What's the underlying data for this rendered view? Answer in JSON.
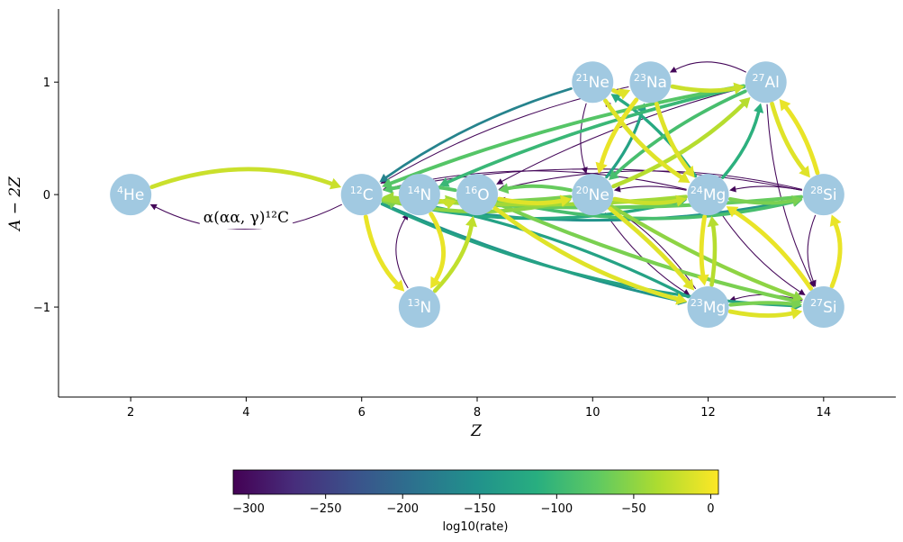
{
  "chart_data": {
    "type": "network",
    "xlabel": "Z",
    "ylabel": "A − 2Z",
    "xlim": [
      0.75,
      15.25
    ],
    "ylim": [
      -1.8,
      1.65
    ],
    "x_ticks": [
      {
        "value": 2,
        "label": "2"
      },
      {
        "value": 4,
        "label": "4"
      },
      {
        "value": 6,
        "label": "6"
      },
      {
        "value": 8,
        "label": "8"
      },
      {
        "value": 10,
        "label": "10"
      },
      {
        "value": 12,
        "label": "12"
      },
      {
        "value": 14,
        "label": "14"
      }
    ],
    "y_ticks": [
      {
        "value": 1,
        "label": "1"
      },
      {
        "value": 0,
        "label": "0"
      },
      {
        "value": -1,
        "label": "−1"
      }
    ],
    "annotation": {
      "text": "α(αα, γ)¹²C",
      "x": 4.0,
      "y": -0.2
    },
    "nodes": [
      {
        "id": "he4",
        "mass": "4",
        "element": "He",
        "Z": 2,
        "N_minus_Z": 0
      },
      {
        "id": "c12",
        "mass": "12",
        "element": "C",
        "Z": 6,
        "N_minus_Z": 0
      },
      {
        "id": "n14",
        "mass": "14",
        "element": "N",
        "Z": 7,
        "N_minus_Z": 0
      },
      {
        "id": "o16",
        "mass": "16",
        "element": "O",
        "Z": 8,
        "N_minus_Z": 0
      },
      {
        "id": "ne20",
        "mass": "20",
        "element": "Ne",
        "Z": 10,
        "N_minus_Z": 0
      },
      {
        "id": "mg24",
        "mass": "24",
        "element": "Mg",
        "Z": 12,
        "N_minus_Z": 0
      },
      {
        "id": "si28",
        "mass": "28",
        "element": "Si",
        "Z": 14,
        "N_minus_Z": 0
      },
      {
        "id": "ne21",
        "mass": "21",
        "element": "Ne",
        "Z": 10,
        "N_minus_Z": 1
      },
      {
        "id": "na23",
        "mass": "23",
        "element": "Na",
        "Z": 11,
        "N_minus_Z": 1
      },
      {
        "id": "al27",
        "mass": "27",
        "element": "Al",
        "Z": 13,
        "N_minus_Z": 1
      },
      {
        "id": "n13",
        "mass": "13",
        "element": "N",
        "Z": 7,
        "N_minus_Z": -1
      },
      {
        "id": "mg23",
        "mass": "23",
        "element": "Mg",
        "Z": 12,
        "N_minus_Z": -1
      },
      {
        "id": "si27",
        "mass": "27",
        "element": "Si",
        "Z": 14,
        "N_minus_Z": -1
      }
    ],
    "edges": [
      {
        "from": "he4",
        "to": "c12",
        "log10_rate": -20,
        "curve": -0.18
      },
      {
        "from": "c12",
        "to": "he4",
        "log10_rate": -305,
        "curve": -0.25
      },
      {
        "from": "c12",
        "to": "n13",
        "log10_rate": -5,
        "curve": 0.15
      },
      {
        "from": "n13",
        "to": "o16",
        "log10_rate": -25,
        "curve": 0.15
      },
      {
        "from": "n14",
        "to": "n13",
        "log10_rate": -5,
        "curve": -0.3
      },
      {
        "from": "n13",
        "to": "n14",
        "log10_rate": -305,
        "curve": -0.3
      },
      {
        "from": "c12",
        "to": "o16",
        "log10_rate": -40,
        "curve": 0.1
      },
      {
        "from": "o16",
        "to": "c12",
        "log10_rate": -80,
        "curve": 0.1
      },
      {
        "from": "c12",
        "to": "n14",
        "log10_rate": -60,
        "curve": 0.15
      },
      {
        "from": "n14",
        "to": "o16",
        "log10_rate": -20,
        "curve": 0.15
      },
      {
        "from": "o16",
        "to": "ne20",
        "log10_rate": -10,
        "curve": 0.1
      },
      {
        "from": "ne20",
        "to": "o16",
        "log10_rate": -70,
        "curve": 0.1
      },
      {
        "from": "c12",
        "to": "ne20",
        "log10_rate": -50,
        "curve": 0.12
      },
      {
        "from": "c12",
        "to": "mg24",
        "log10_rate": -120,
        "curve": 0.12
      },
      {
        "from": "mg24",
        "to": "c12",
        "log10_rate": -305,
        "curve": 0.12
      },
      {
        "from": "c12",
        "to": "si28",
        "log10_rate": -150,
        "curve": 0.1
      },
      {
        "from": "si28",
        "to": "c12",
        "log10_rate": -305,
        "curve": 0.1
      },
      {
        "from": "si28",
        "to": "o16",
        "log10_rate": -305,
        "curve": 0.12
      },
      {
        "from": "o16",
        "to": "si28",
        "log10_rate": -90,
        "curve": 0.12
      },
      {
        "from": "ne20",
        "to": "mg24",
        "log10_rate": -20,
        "curve": 0.1
      },
      {
        "from": "mg24",
        "to": "ne20",
        "log10_rate": -305,
        "curve": 0.1
      },
      {
        "from": "mg24",
        "to": "si28",
        "log10_rate": -60,
        "curve": 0.1
      },
      {
        "from": "si28",
        "to": "mg24",
        "log10_rate": -305,
        "curve": 0.1
      },
      {
        "from": "ne21",
        "to": "c12",
        "log10_rate": -170,
        "curve": 0.08
      },
      {
        "from": "na23",
        "to": "c12",
        "log10_rate": -305,
        "curve": 0.08
      },
      {
        "from": "al27",
        "to": "c12",
        "log10_rate": -80,
        "curve": 0.05
      },
      {
        "from": "al27",
        "to": "n14",
        "log10_rate": -100,
        "curve": 0.05
      },
      {
        "from": "al27",
        "to": "o16",
        "log10_rate": -305,
        "curve": 0.06
      },
      {
        "from": "c12",
        "to": "mg23",
        "log10_rate": -150,
        "curve": 0.05
      },
      {
        "from": "c12",
        "to": "si27",
        "log10_rate": -130,
        "curve": 0.1
      },
      {
        "from": "o16",
        "to": "mg23",
        "log10_rate": -10,
        "curve": 0.1
      },
      {
        "from": "ne20",
        "to": "si27",
        "log10_rate": -50,
        "curve": 0.05
      },
      {
        "from": "o16",
        "to": "si27",
        "log10_rate": -60,
        "curve": 0.05
      },
      {
        "from": "ne20",
        "to": "mg23",
        "log10_rate": -305,
        "curve": 0.1
      },
      {
        "from": "ne21",
        "to": "mg24",
        "log10_rate": -10,
        "curve": 0.1
      },
      {
        "from": "mg24",
        "to": "ne21",
        "log10_rate": -120,
        "curve": 0.1
      },
      {
        "from": "ne21",
        "to": "ne20",
        "log10_rate": -305,
        "curve": 0.15
      },
      {
        "from": "ne21",
        "to": "na23",
        "log10_rate": -10,
        "curve": 0.2
      },
      {
        "from": "na23",
        "to": "ne20",
        "log10_rate": -5,
        "curve": 0.1
      },
      {
        "from": "na23",
        "to": "mg24",
        "log10_rate": -10,
        "curve": 0.1
      },
      {
        "from": "na23",
        "to": "al27",
        "log10_rate": -20,
        "curve": 0.1
      },
      {
        "from": "al27",
        "to": "na23",
        "log10_rate": -305,
        "curve": 0.25
      },
      {
        "from": "ne20",
        "to": "na23",
        "log10_rate": -130,
        "curve": 0.1
      },
      {
        "from": "al27",
        "to": "ne20",
        "log10_rate": -90,
        "curve": 0.08
      },
      {
        "from": "mg24",
        "to": "al27",
        "log10_rate": -110,
        "curve": 0.12
      },
      {
        "from": "ne20",
        "to": "al27",
        "log10_rate": -30,
        "curve": 0.1
      },
      {
        "from": "al27",
        "to": "si28",
        "log10_rate": -10,
        "curve": 0.1
      },
      {
        "from": "si28",
        "to": "al27",
        "log10_rate": -5,
        "curve": 0.1
      },
      {
        "from": "al27",
        "to": "si27",
        "log10_rate": -305,
        "curve": 0.1
      },
      {
        "from": "si28",
        "to": "si27",
        "log10_rate": -305,
        "curve": 0.2
      },
      {
        "from": "si27",
        "to": "si28",
        "log10_rate": -5,
        "curve": 0.2
      },
      {
        "from": "mg24",
        "to": "mg23",
        "log10_rate": -5,
        "curve": 0.08
      },
      {
        "from": "mg23",
        "to": "mg24",
        "log10_rate": -30,
        "curve": 0.08
      },
      {
        "from": "mg23",
        "to": "si27",
        "log10_rate": -10,
        "curve": 0.1
      },
      {
        "from": "si27",
        "to": "mg23",
        "log10_rate": -305,
        "curve": 0.15
      },
      {
        "from": "mg23",
        "to": "si27",
        "log10_rate": -60,
        "curve": -0.05
      },
      {
        "from": "si27",
        "to": "mg24",
        "log10_rate": -5,
        "curve": 0.1
      },
      {
        "from": "mg24",
        "to": "si27",
        "log10_rate": -305,
        "curve": 0.1
      },
      {
        "from": "ne20",
        "to": "mg23",
        "log10_rate": -10,
        "curve": -0.05
      },
      {
        "from": "mg23",
        "to": "ne20",
        "log10_rate": -305,
        "curve": 0.1
      },
      {
        "from": "mg24",
        "to": "ne21",
        "log10_rate": -305,
        "curve": -0.1
      },
      {
        "from": "mg24",
        "to": "c12",
        "log10_rate": -40,
        "curve": -0.05
      },
      {
        "from": "si28",
        "to": "c12",
        "log10_rate": -70,
        "curve": -0.05
      },
      {
        "from": "mg24",
        "to": "o16",
        "log10_rate": -305,
        "curve": -0.1
      },
      {
        "from": "ne20",
        "to": "c12",
        "log10_rate": -60,
        "curve": -0.05
      },
      {
        "from": "mg23",
        "to": "c12",
        "log10_rate": -130,
        "curve": 0.08
      }
    ],
    "colorbar": {
      "label": "log10(rate)",
      "min": -310,
      "max": 5,
      "colormap": "viridis",
      "ticks": [
        {
          "value": -300,
          "label": "−300"
        },
        {
          "value": -250,
          "label": "−250"
        },
        {
          "value": -200,
          "label": "−200"
        },
        {
          "value": -150,
          "label": "−150"
        },
        {
          "value": -100,
          "label": "−100"
        },
        {
          "value": -50,
          "label": "−50"
        },
        {
          "value": 0,
          "label": "0"
        }
      ]
    },
    "node_color": "#a1c9e1"
  }
}
